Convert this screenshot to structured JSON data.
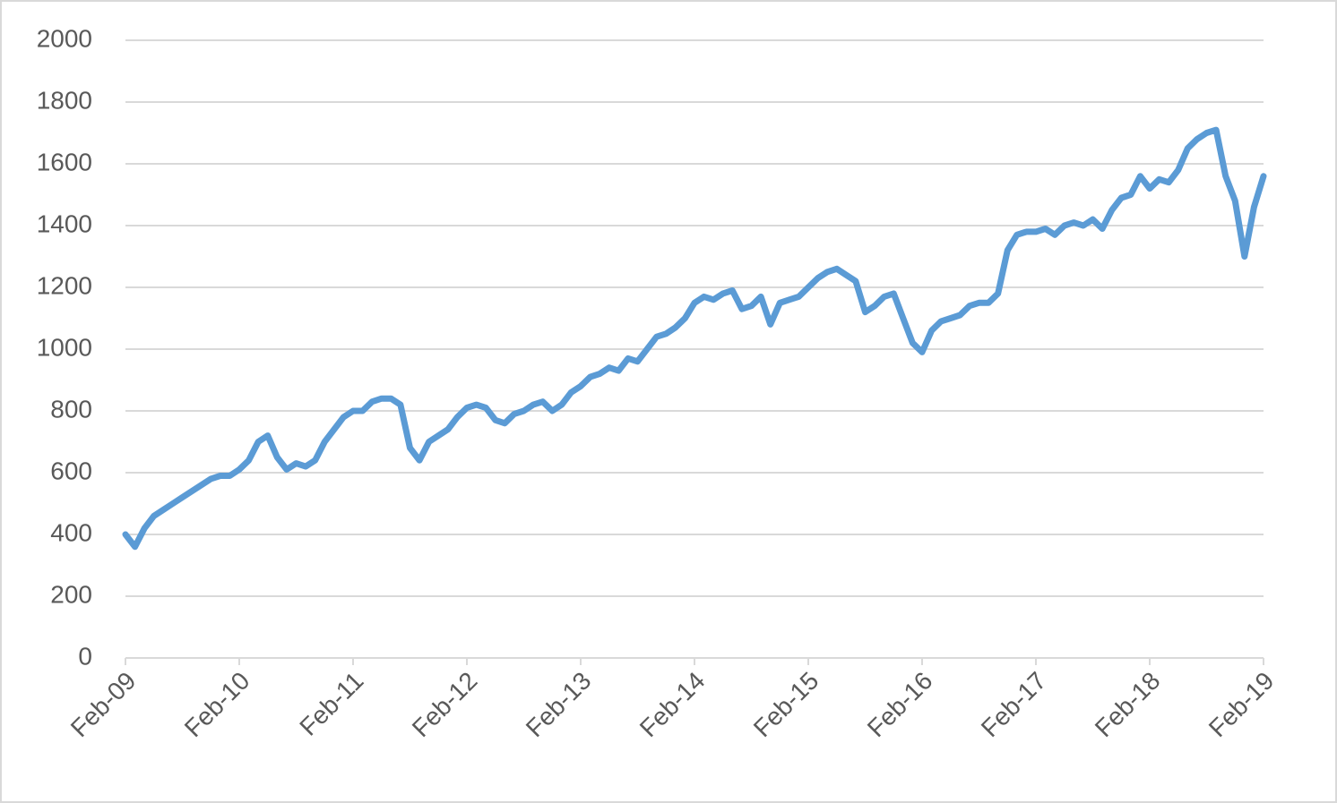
{
  "chart_data": {
    "type": "line",
    "x": [
      "2009-02",
      "2009-03",
      "2009-04",
      "2009-05",
      "2009-06",
      "2009-07",
      "2009-08",
      "2009-09",
      "2009-10",
      "2009-11",
      "2009-12",
      "2010-01",
      "2010-02",
      "2010-03",
      "2010-04",
      "2010-05",
      "2010-06",
      "2010-07",
      "2010-08",
      "2010-09",
      "2010-10",
      "2010-11",
      "2010-12",
      "2011-01",
      "2011-02",
      "2011-03",
      "2011-04",
      "2011-05",
      "2011-06",
      "2011-07",
      "2011-08",
      "2011-09",
      "2011-10",
      "2011-11",
      "2011-12",
      "2012-01",
      "2012-02",
      "2012-03",
      "2012-04",
      "2012-05",
      "2012-06",
      "2012-07",
      "2012-08",
      "2012-09",
      "2012-10",
      "2012-11",
      "2012-12",
      "2013-01",
      "2013-02",
      "2013-03",
      "2013-04",
      "2013-05",
      "2013-06",
      "2013-07",
      "2013-08",
      "2013-09",
      "2013-10",
      "2013-11",
      "2013-12",
      "2014-01",
      "2014-02",
      "2014-03",
      "2014-04",
      "2014-05",
      "2014-06",
      "2014-07",
      "2014-08",
      "2014-09",
      "2014-10",
      "2014-11",
      "2014-12",
      "2015-01",
      "2015-02",
      "2015-03",
      "2015-04",
      "2015-05",
      "2015-06",
      "2015-07",
      "2015-08",
      "2015-09",
      "2015-10",
      "2015-11",
      "2015-12",
      "2016-01",
      "2016-02",
      "2016-03",
      "2016-04",
      "2016-05",
      "2016-06",
      "2016-07",
      "2016-08",
      "2016-09",
      "2016-10",
      "2016-11",
      "2016-12",
      "2017-01",
      "2017-02",
      "2017-03",
      "2017-04",
      "2017-05",
      "2017-06",
      "2017-07",
      "2017-08",
      "2017-09",
      "2017-10",
      "2017-11",
      "2017-12",
      "2018-01",
      "2018-02",
      "2018-03",
      "2018-04",
      "2018-05",
      "2018-06",
      "2018-07",
      "2018-08",
      "2018-09",
      "2018-10",
      "2018-11",
      "2018-12",
      "2019-01",
      "2019-02"
    ],
    "values": [
      400,
      360,
      420,
      460,
      480,
      500,
      520,
      540,
      560,
      580,
      590,
      590,
      610,
      640,
      700,
      720,
      650,
      610,
      630,
      620,
      640,
      700,
      740,
      780,
      800,
      800,
      830,
      840,
      840,
      820,
      680,
      640,
      700,
      720,
      740,
      780,
      810,
      820,
      810,
      770,
      760,
      790,
      800,
      820,
      830,
      800,
      820,
      860,
      880,
      910,
      920,
      940,
      930,
      970,
      960,
      1000,
      1040,
      1050,
      1070,
      1100,
      1150,
      1170,
      1160,
      1180,
      1190,
      1130,
      1140,
      1170,
      1080,
      1150,
      1160,
      1170,
      1200,
      1230,
      1250,
      1260,
      1240,
      1220,
      1120,
      1140,
      1170,
      1180,
      1100,
      1020,
      990,
      1060,
      1090,
      1100,
      1110,
      1140,
      1150,
      1150,
      1180,
      1320,
      1370,
      1380,
      1380,
      1390,
      1370,
      1400,
      1410,
      1400,
      1420,
      1390,
      1450,
      1490,
      1500,
      1560,
      1520,
      1550,
      1540,
      1580,
      1650,
      1680,
      1700,
      1710,
      1560,
      1480,
      1300,
      1460,
      1560
    ],
    "color": "#5b9bd5",
    "xlim": [
      "2009-02",
      "2019-02"
    ],
    "xticks": [
      {
        "value": "2009-02",
        "label": "Feb-09"
      },
      {
        "value": "2010-02",
        "label": "Feb-10"
      },
      {
        "value": "2011-02",
        "label": "Feb-11"
      },
      {
        "value": "2012-02",
        "label": "Feb-12"
      },
      {
        "value": "2013-02",
        "label": "Feb-13"
      },
      {
        "value": "2014-02",
        "label": "Feb-14"
      },
      {
        "value": "2015-02",
        "label": "Feb-15"
      },
      {
        "value": "2016-02",
        "label": "Feb-16"
      },
      {
        "value": "2017-02",
        "label": "Feb-17"
      },
      {
        "value": "2018-02",
        "label": "Feb-18"
      },
      {
        "value": "2019-02",
        "label": "Feb-19"
      }
    ],
    "ylim": [
      0,
      2000
    ],
    "yticks": [
      0,
      200,
      400,
      600,
      800,
      1000,
      1200,
      1400,
      1600,
      1800,
      2000
    ],
    "grid": true
  }
}
